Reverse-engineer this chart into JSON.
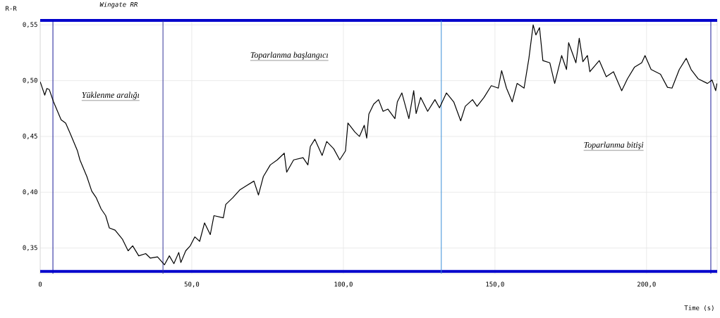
{
  "chart_data": {
    "type": "line",
    "title": "Wingate RR",
    "xlabel": "Time (s)",
    "ylabel": "R-R",
    "xlim": [
      0,
      223.3
    ],
    "ylim": [
      0.327,
      0.554
    ],
    "xticks": [
      {
        "value": 0,
        "label": "0"
      },
      {
        "value": 50,
        "label": "50,0"
      },
      {
        "value": 100,
        "label": "100,0"
      },
      {
        "value": 150,
        "label": "150,0"
      },
      {
        "value": 200,
        "label": "200,0"
      }
    ],
    "yticks": [
      {
        "value": 0.35,
        "label": "0,35"
      },
      {
        "value": 0.4,
        "label": "0,40"
      },
      {
        "value": 0.45,
        "label": "0,45"
      },
      {
        "value": 0.5,
        "label": "0,50"
      },
      {
        "value": 0.55,
        "label": "0,55"
      }
    ],
    "grid": true,
    "marker": "none",
    "line_style": "solid",
    "annotations": [
      "Yüklenme aralığı",
      "Toparlanma başlangıcı",
      "Toparlanma bitişi"
    ],
    "ref_lines": [
      {
        "axis": "x",
        "value": 4.2,
        "color": "#1a1a99"
      },
      {
        "axis": "x",
        "value": 221.2,
        "color": "#1a1a99"
      },
      {
        "axis": "y",
        "value": 0.329,
        "color": "#0000cc"
      },
      {
        "axis": "y",
        "value": 0.554,
        "color": "#0000cc"
      },
      {
        "axis": "x",
        "value": 40.5,
        "color": "#333399"
      },
      {
        "axis": "x",
        "value": 132.3,
        "color": "#3a8fd8"
      }
    ],
    "series": [
      {
        "color": "#000000",
        "x": [
          0,
          1.5,
          2.2,
          3.0,
          4.4,
          6.9,
          8.4,
          10.0,
          12.3,
          13.1,
          15.4,
          17.0,
          18.5,
          20.1,
          21.6,
          22.8,
          24.7,
          27.1,
          29.0,
          30.5,
          32.5,
          34.8,
          36.3,
          38.7,
          41.0,
          42.6,
          44.1,
          45.7,
          46.4,
          48.0,
          49.5,
          51.0,
          52.6,
          54.2,
          56.1,
          57.3,
          60.4,
          61.2,
          63.5,
          65.8,
          68.1,
          70.5,
          72.0,
          73.6,
          75.9,
          78.2,
          80.5,
          81.3,
          83.6,
          86.7,
          88.3,
          89.1,
          90.6,
          93.0,
          94.5,
          96.8,
          98.8,
          100.7,
          101.5,
          103.8,
          105.3,
          106.9,
          107.7,
          108.4,
          110.0,
          111.6,
          113.1,
          114.7,
          117.0,
          117.8,
          119.3,
          121.6,
          123.2,
          124.0,
          125.5,
          127.8,
          130.2,
          131.7,
          134.0,
          136.4,
          138.7,
          140.2,
          142.6,
          144.1,
          146.4,
          148.8,
          151.1,
          152.2,
          153.8,
          155.7,
          157.3,
          159.6,
          161.2,
          162.6,
          163.5,
          164.7,
          165.8,
          168.1,
          169.7,
          172.0,
          173.6,
          174.3,
          176.7,
          177.8,
          179.0,
          180.5,
          181.3,
          184.4,
          186.7,
          189.1,
          191.8,
          193.7,
          196.0,
          198.4,
          199.5,
          201.5,
          204.6,
          206.9,
          208.4,
          210.8,
          213.1,
          214.7,
          217.0,
          220.1,
          221.6,
          222.8,
          223.2
        ],
        "values": [
          0.499,
          0.487,
          0.493,
          0.492,
          0.481,
          0.465,
          0.462,
          0.452,
          0.437,
          0.429,
          0.414,
          0.401,
          0.395,
          0.385,
          0.379,
          0.368,
          0.366,
          0.358,
          0.3475,
          0.352,
          0.343,
          0.345,
          0.341,
          0.342,
          0.335,
          0.343,
          0.336,
          0.346,
          0.337,
          0.3475,
          0.352,
          0.36,
          0.356,
          0.3725,
          0.362,
          0.379,
          0.377,
          0.389,
          0.395,
          0.402,
          0.406,
          0.41,
          0.3975,
          0.414,
          0.4245,
          0.429,
          0.435,
          0.418,
          0.429,
          0.431,
          0.4245,
          0.441,
          0.4475,
          0.433,
          0.4455,
          0.439,
          0.429,
          0.437,
          0.462,
          0.454,
          0.45,
          0.46,
          0.4485,
          0.47,
          0.479,
          0.483,
          0.4725,
          0.4745,
          0.466,
          0.481,
          0.489,
          0.466,
          0.491,
          0.4705,
          0.485,
          0.4725,
          0.483,
          0.4756,
          0.489,
          0.481,
          0.464,
          0.477,
          0.483,
          0.477,
          0.485,
          0.4955,
          0.4933,
          0.509,
          0.4933,
          0.481,
          0.4975,
          0.4933,
          0.52,
          0.55,
          0.541,
          0.5475,
          0.518,
          0.516,
          0.4975,
          0.5225,
          0.51,
          0.534,
          0.516,
          0.538,
          0.517,
          0.5225,
          0.508,
          0.518,
          0.5035,
          0.508,
          0.491,
          0.5017,
          0.512,
          0.516,
          0.5225,
          0.51,
          0.5058,
          0.494,
          0.4933,
          0.51,
          0.52,
          0.51,
          0.5017,
          0.4975,
          0.5006,
          0.491,
          0.4975
        ]
      }
    ]
  }
}
